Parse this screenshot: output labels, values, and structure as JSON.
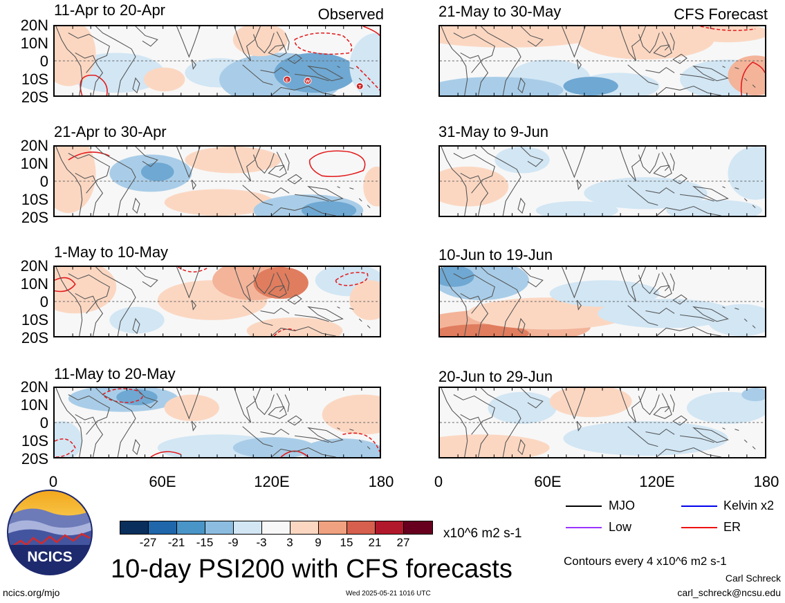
{
  "panels": {
    "obs": [
      {
        "title": "11-Apr to 20-Apr",
        "label": "Observed"
      },
      {
        "title": "21-Apr to 30-Apr",
        "label": ""
      },
      {
        "title": "1-May to 10-May",
        "label": ""
      },
      {
        "title": "11-May to 20-May",
        "label": ""
      }
    ],
    "fcst": [
      {
        "title": "21-May to 30-May",
        "label": "CFS Forecast"
      },
      {
        "title": "31-May to 9-Jun",
        "label": ""
      },
      {
        "title": "10-Jun to 19-Jun",
        "label": ""
      },
      {
        "title": "20-Jun to 29-Jun",
        "label": ""
      }
    ]
  },
  "latitude_labels": [
    "20N",
    "10N",
    "0",
    "10S",
    "20S"
  ],
  "longitude_labels": [
    "0",
    "60E",
    "120E",
    "180"
  ],
  "colorbar": {
    "ticks": [
      "-27",
      "-21",
      "-15",
      "-9",
      "-3",
      "3",
      "9",
      "15",
      "21",
      "27"
    ],
    "units": "x10^6 m2 s-1",
    "colors": [
      "#0a2f5c",
      "#1f66aa",
      "#4a95c8",
      "#8cbde0",
      "#d2e6f4",
      "#f7f7f7",
      "#fbd7c2",
      "#f0a17f",
      "#d6604d",
      "#b2182b",
      "#67001f"
    ]
  },
  "legend": {
    "items": [
      {
        "label": "MJO",
        "color": "#000000"
      },
      {
        "label": "Kelvin x2",
        "color": "#0000ee"
      },
      {
        "label": "Low",
        "color": "#9933ff"
      },
      {
        "label": "ER",
        "color": "#ee1111"
      }
    ],
    "contour_note": "Contours every 4 x10^6 m2 s-1"
  },
  "main_title": "10-day PSI200 with CFS forecasts",
  "logo_text": "NCICS",
  "footer": {
    "website": "ncics.org/mjo",
    "timestamp": "Wed 2025-05-21 1016 UTC",
    "author": "Carl Schreck",
    "email": "carl_schreck@ncsu.edu"
  },
  "storm_markers": [
    "E",
    "W",
    "T"
  ]
}
